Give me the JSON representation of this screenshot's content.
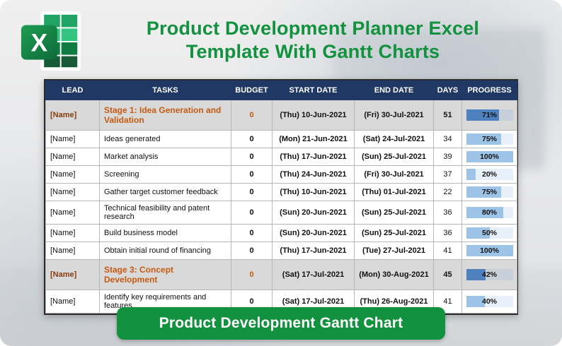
{
  "page": {
    "title_line1": "Product Development Planner Excel",
    "title_line2": "Template With Gantt Charts",
    "banner_label": "Product Development Gantt Chart",
    "excel_icon_letter": "X"
  },
  "colors": {
    "green": "#12913e",
    "navy": "#1f3864",
    "stage_orange": "#c55a11",
    "stage_bg": "#d9d9d9",
    "bar_fill": "#9dc3e6",
    "bar_fill_stage": "#4e81bd"
  },
  "table": {
    "headers": [
      "LEAD",
      "TASKS",
      "BUDGET",
      "START DATE",
      "END DATE",
      "DAYS",
      "PROGRESS"
    ],
    "rows": [
      {
        "lead": "[Name]",
        "task": "Stage 1: Idea Generation and Validation",
        "budget": "0",
        "start": "(Thu) 10-Jun-2021",
        "end": "(Fri) 30-Jul-2021",
        "days": "51",
        "progress": 71,
        "is_stage": true
      },
      {
        "lead": "[Name]",
        "task": "Ideas generated",
        "budget": "0",
        "start": "(Mon) 21-Jun-2021",
        "end": "(Sat) 24-Jul-2021",
        "days": "34",
        "progress": 75,
        "is_stage": false
      },
      {
        "lead": "[Name]",
        "task": "Market analysis",
        "budget": "0",
        "start": "(Thu) 17-Jun-2021",
        "end": "(Sun) 25-Jul-2021",
        "days": "39",
        "progress": 100,
        "is_stage": false
      },
      {
        "lead": "[Name]",
        "task": "Screening",
        "budget": "0",
        "start": "(Thu) 24-Jun-2021",
        "end": "(Fri) 30-Jul-2021",
        "days": "37",
        "progress": 20,
        "is_stage": false
      },
      {
        "lead": "[Name]",
        "task": "Gather target customer feedback",
        "budget": "0",
        "start": "(Thu) 10-Jun-2021",
        "end": "(Thu) 01-Jul-2021",
        "days": "22",
        "progress": 75,
        "is_stage": false
      },
      {
        "lead": "[Name]",
        "task": "Technical feasibility and patent research",
        "budget": "0",
        "start": "(Sun) 20-Jun-2021",
        "end": "(Sun) 25-Jul-2021",
        "days": "36",
        "progress": 80,
        "is_stage": false
      },
      {
        "lead": "[Name]",
        "task": "Build business model",
        "budget": "0",
        "start": "(Sun) 20-Jun-2021",
        "end": "(Sun) 25-Jul-2021",
        "days": "36",
        "progress": 50,
        "is_stage": false
      },
      {
        "lead": "[Name]",
        "task": "Obtain initial round of financing",
        "budget": "0",
        "start": "(Thu) 17-Jun-2021",
        "end": "(Tue) 27-Jul-2021",
        "days": "41",
        "progress": 100,
        "is_stage": false
      },
      {
        "lead": "[Name]",
        "task": "Stage 3: Concept Development",
        "budget": "0",
        "start": "(Sat) 17-Jul-2021",
        "end": "(Mon) 30-Aug-2021",
        "days": "45",
        "progress": 42,
        "is_stage": true
      },
      {
        "lead": "[Name]",
        "task": "Identify key requirements and features",
        "budget": "0",
        "start": "(Sat) 17-Jul-2021",
        "end": "(Thu) 26-Aug-2021",
        "days": "41",
        "progress": 40,
        "is_stage": false
      }
    ]
  }
}
